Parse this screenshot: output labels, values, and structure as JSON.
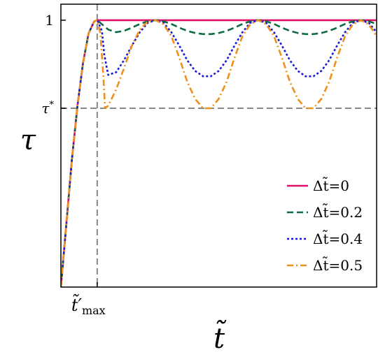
{
  "chart_data": {
    "type": "line",
    "xlabel": "t̃",
    "ylabel": "τ",
    "xlim": [
      0,
      4.0
    ],
    "ylim": [
      0,
      1.06
    ],
    "grid": false,
    "legend_position": "bottom-right",
    "x_ticks": [
      {
        "x": 0.46,
        "label_main": "t̃′",
        "label_sub": "max"
      }
    ],
    "y_ticks": [
      {
        "y": 1.0,
        "label": "1",
        "sup": ""
      },
      {
        "y": 0.67,
        "label": "τ",
        "sup": "*"
      }
    ],
    "reference_lines": [
      {
        "orientation": "horizontal",
        "y": 0.67,
        "color": "#888888",
        "style": "dashed"
      },
      {
        "orientation": "vertical",
        "x": 0.46,
        "color": "#888888",
        "style": "dashed"
      }
    ],
    "series": [
      {
        "name": "Δt̃=0",
        "color": "#e0106a",
        "style": "solid",
        "x": [
          0.0,
          0.07,
          0.14,
          0.21,
          0.28,
          0.35,
          0.42,
          0.46,
          0.6,
          0.8,
          1.0,
          1.2,
          1.4,
          1.6,
          1.8,
          2.0,
          2.2,
          2.4,
          2.6,
          2.8,
          3.0,
          3.2,
          3.4,
          3.6,
          3.8,
          4.0
        ],
        "y": [
          0.0,
          0.24,
          0.48,
          0.68,
          0.84,
          0.95,
          0.995,
          1.0,
          1.0,
          1.0,
          1.0,
          1.0,
          1.0,
          1.0,
          1.0,
          1.0,
          1.0,
          1.0,
          1.0,
          1.0,
          1.0,
          1.0,
          1.0,
          1.0,
          1.0,
          1.0
        ]
      },
      {
        "name": "Δt̃=0.2",
        "color": "#0e6b40",
        "style": "dashed",
        "x": [
          0.0,
          0.07,
          0.14,
          0.21,
          0.28,
          0.35,
          0.42,
          0.46,
          0.52,
          0.6,
          0.7,
          0.8,
          0.9,
          1.0,
          1.1,
          1.2,
          1.3,
          1.4,
          1.5,
          1.6,
          1.7,
          1.8,
          1.9,
          2.0,
          2.1,
          2.2,
          2.3,
          2.4,
          2.5,
          2.6,
          2.7,
          2.8,
          2.9,
          3.0,
          3.1,
          3.2,
          3.3,
          3.4,
          3.5,
          3.6,
          3.7,
          3.8,
          3.9,
          4.0
        ],
        "y": [
          0.0,
          0.24,
          0.48,
          0.68,
          0.84,
          0.95,
          0.995,
          1.0,
          0.985,
          0.965,
          0.955,
          0.96,
          0.972,
          0.986,
          0.996,
          1.0,
          0.996,
          0.986,
          0.972,
          0.96,
          0.952,
          0.948,
          0.948,
          0.952,
          0.96,
          0.972,
          0.986,
          0.996,
          1.0,
          0.996,
          0.986,
          0.972,
          0.96,
          0.952,
          0.948,
          0.948,
          0.952,
          0.96,
          0.972,
          0.986,
          0.996,
          1.0,
          0.996,
          0.986
        ]
      },
      {
        "name": "Δt̃=0.4",
        "color": "#1a1ad6",
        "style": "dotted",
        "x": [
          0.0,
          0.07,
          0.14,
          0.21,
          0.28,
          0.35,
          0.42,
          0.46,
          0.52,
          0.55,
          0.6,
          0.7,
          0.8,
          0.9,
          1.0,
          1.1,
          1.2,
          1.3,
          1.4,
          1.5,
          1.6,
          1.7,
          1.8,
          1.9,
          2.0,
          2.1,
          2.2,
          2.3,
          2.4,
          2.5,
          2.6,
          2.7,
          2.8,
          2.9,
          3.0,
          3.1,
          3.2,
          3.3,
          3.4,
          3.5,
          3.6,
          3.7,
          3.8,
          3.9,
          4.0
        ],
        "y": [
          0.0,
          0.24,
          0.48,
          0.68,
          0.84,
          0.95,
          0.995,
          1.0,
          0.96,
          0.87,
          0.795,
          0.805,
          0.85,
          0.905,
          0.955,
          0.99,
          1.0,
          0.99,
          0.955,
          0.905,
          0.85,
          0.81,
          0.79,
          0.79,
          0.81,
          0.85,
          0.905,
          0.955,
          0.99,
          1.0,
          0.99,
          0.955,
          0.905,
          0.85,
          0.81,
          0.79,
          0.79,
          0.81,
          0.85,
          0.905,
          0.955,
          0.99,
          1.0,
          0.99,
          0.955
        ]
      },
      {
        "name": "Δt̃=0.5",
        "color": "#f0901c",
        "style": "dashdot",
        "x": [
          0.0,
          0.07,
          0.14,
          0.21,
          0.28,
          0.35,
          0.42,
          0.46,
          0.5,
          0.54,
          0.56,
          0.6,
          0.7,
          0.8,
          0.9,
          1.0,
          1.1,
          1.2,
          1.3,
          1.4,
          1.5,
          1.6,
          1.7,
          1.8,
          1.9,
          2.0,
          2.1,
          2.2,
          2.3,
          2.4,
          2.5,
          2.6,
          2.7,
          2.8,
          2.9,
          3.0,
          3.1,
          3.2,
          3.3,
          3.4,
          3.5,
          3.6,
          3.7,
          3.8,
          3.9,
          4.0
        ],
        "y": [
          0.0,
          0.24,
          0.48,
          0.68,
          0.84,
          0.95,
          0.995,
          1.0,
          0.95,
          0.78,
          0.67,
          0.68,
          0.74,
          0.82,
          0.905,
          0.965,
          0.995,
          1.0,
          0.985,
          0.94,
          0.86,
          0.77,
          0.705,
          0.67,
          0.67,
          0.705,
          0.77,
          0.86,
          0.94,
          0.985,
          1.0,
          0.985,
          0.94,
          0.86,
          0.77,
          0.705,
          0.67,
          0.67,
          0.705,
          0.77,
          0.86,
          0.94,
          0.985,
          1.0,
          0.985,
          0.94
        ]
      }
    ]
  }
}
